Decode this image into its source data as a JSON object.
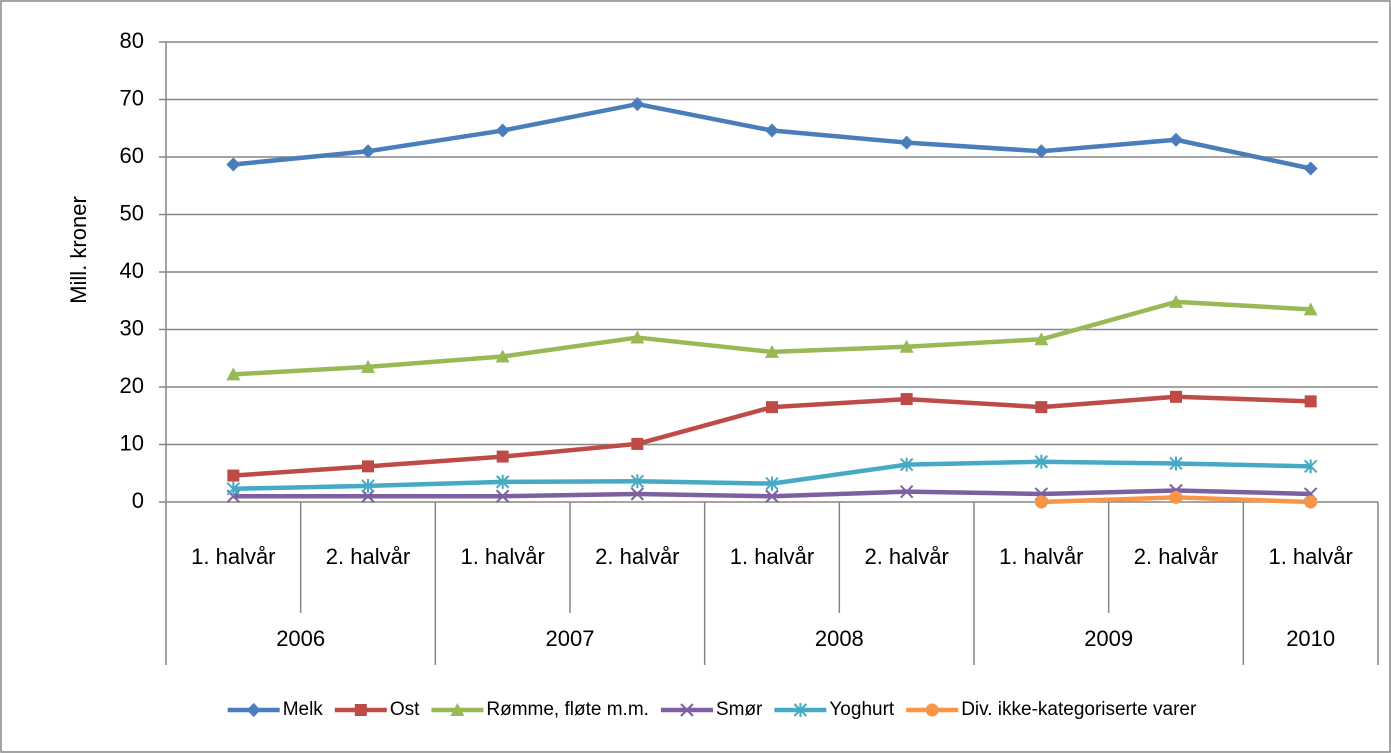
{
  "chart_data": {
    "type": "line",
    "y_label": "Mill. kroner",
    "categories": [
      "1. halvår",
      "2. halvår",
      "1. halvår",
      "2. halvår",
      "1. halvår",
      "2. halvår",
      "1. halvår",
      "2. halvår",
      "1. halvår"
    ],
    "years": [
      "2006",
      null,
      "2007",
      null,
      "2008",
      null,
      "2009",
      null,
      "2010"
    ],
    "ylim": [
      0,
      80
    ],
    "yticks": [
      0,
      10,
      20,
      30,
      40,
      50,
      60,
      70,
      80
    ],
    "grid": true,
    "legend": "bottom",
    "series": [
      {
        "name": "Melk",
        "color": "#4a7ebb",
        "marker": "diamond",
        "values": [
          58.7,
          61,
          64.6,
          69.2,
          64.6,
          62.5,
          61,
          63,
          58
        ]
      },
      {
        "name": "Ost",
        "color": "#be4b48",
        "marker": "square",
        "values": [
          4.6,
          6.2,
          7.9,
          10.1,
          16.5,
          17.9,
          16.5,
          18.3,
          17.5
        ]
      },
      {
        "name": "Rømme, fløte m.m.",
        "color": "#98b954",
        "marker": "triangle",
        "values": [
          22.2,
          23.5,
          25.3,
          28.6,
          26.1,
          27,
          28.3,
          34.8,
          33.5
        ]
      },
      {
        "name": "Smør",
        "color": "#7d60a0",
        "marker": "x",
        "values": [
          1,
          1,
          1,
          1.4,
          1,
          1.8,
          1.4,
          2,
          1.4
        ]
      },
      {
        "name": "Yoghurt",
        "color": "#46aac5",
        "marker": "star",
        "values": [
          2.3,
          2.8,
          3.5,
          3.6,
          3.2,
          6.5,
          7,
          6.7,
          6.2
        ]
      },
      {
        "name": "Div. ikke-kategoriserte varer",
        "color": "#f79646",
        "marker": "circle",
        "values": [
          null,
          null,
          null,
          null,
          null,
          null,
          0,
          0.8,
          0
        ]
      }
    ]
  }
}
